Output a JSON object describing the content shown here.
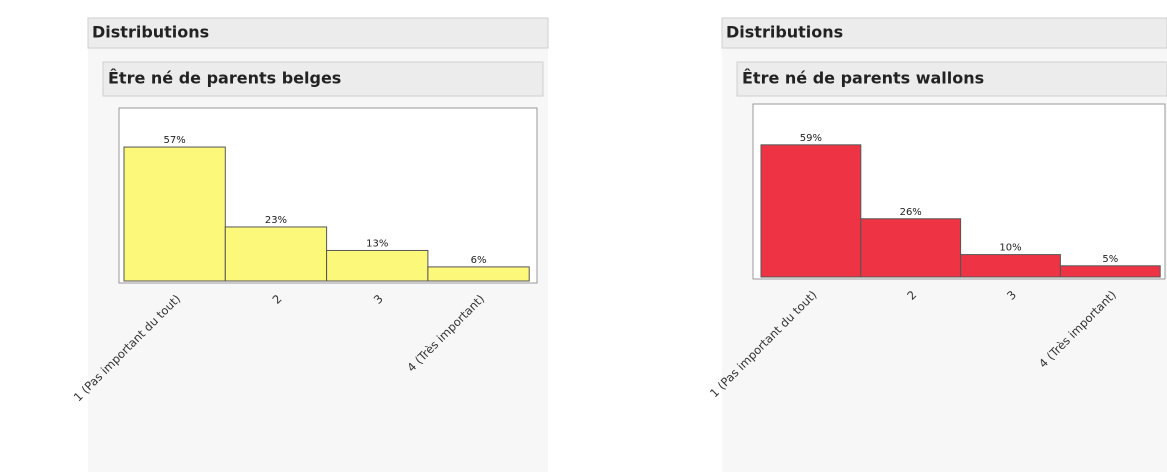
{
  "chart_data": [
    {
      "type": "bar",
      "header": "Distributions",
      "title": "Être né de parents belges",
      "categories": [
        "1 (Pas important du tout)",
        "2",
        "3",
        "4 (Très important)"
      ],
      "values": [
        57,
        23,
        13,
        6
      ],
      "value_labels": [
        "57%",
        "23%",
        "13%",
        "6%"
      ],
      "color": "#fcf87a"
    },
    {
      "type": "bar",
      "header": "Distributions",
      "title": "Être né de parents wallons",
      "categories": [
        "1 (Pas important du tout)",
        "2",
        "3",
        "4 (Très important)"
      ],
      "values": [
        59,
        26,
        10,
        5
      ],
      "value_labels": [
        "59%",
        "26%",
        "10%",
        "5%"
      ],
      "color": "#ee3344"
    }
  ]
}
